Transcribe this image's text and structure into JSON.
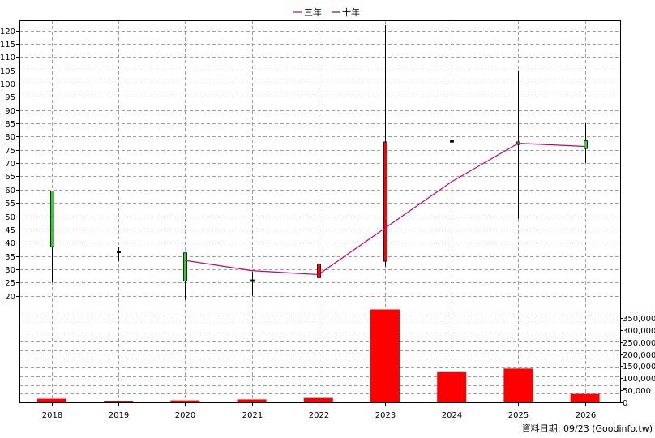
{
  "legend": [
    {
      "label": "三年",
      "color": "#cc0066"
    },
    {
      "label": "十年",
      "color": "#6600cc"
    }
  ],
  "footer_text": "資料日期: 09/23  (Goodinfo.tw)",
  "chart_data": {
    "type": "candlestick",
    "years": [
      "2018",
      "2019",
      "2020",
      "2021",
      "2022",
      "2023",
      "2024",
      "2025",
      "2026"
    ],
    "price_axis": {
      "min": 15,
      "max": 122,
      "ticks": [
        20,
        25,
        30,
        35,
        40,
        45,
        50,
        55,
        60,
        65,
        70,
        75,
        80,
        85,
        90,
        95,
        100,
        105,
        110,
        115,
        120
      ]
    },
    "volume_axis": {
      "min": 0,
      "max": 390000,
      "ticks": [
        0,
        50000,
        100000,
        150000,
        200000,
        250000,
        300000,
        350000
      ],
      "tick_labels": [
        "0",
        "50,000",
        "100,000",
        "150,000",
        "200,000",
        "250,000",
        "300,000",
        "350,000"
      ]
    },
    "candles": [
      {
        "year": "2018",
        "open": 59.5,
        "close": 38.5,
        "high": 59.5,
        "low": 25.0,
        "color": "green"
      },
      {
        "year": "2019",
        "open": 36.8,
        "close": 36.8,
        "high": 38.5,
        "low": 33.0,
        "color": "black"
      },
      {
        "year": "2020",
        "open": 36.2,
        "close": 25.5,
        "high": 36.2,
        "low": 18.5,
        "color": "green"
      },
      {
        "year": "2021",
        "open": 26.0,
        "close": 26.0,
        "high": 29.0,
        "low": 20.0,
        "color": "black"
      },
      {
        "year": "2022",
        "open": 26.8,
        "close": 32.0,
        "high": 33.0,
        "low": 20.5,
        "color": "red"
      },
      {
        "year": "2023",
        "open": 33.0,
        "close": 78.0,
        "high": 122.0,
        "low": 31.0,
        "color": "red"
      },
      {
        "year": "2024",
        "open": 78.5,
        "close": 78.5,
        "high": 100.0,
        "low": 64.5,
        "color": "black"
      },
      {
        "year": "2025",
        "open": 78.0,
        "close": 77.0,
        "high": 105.0,
        "low": 49.0,
        "color": "green"
      },
      {
        "year": "2026",
        "open": 78.5,
        "close": 75.5,
        "high": 85.0,
        "low": 70.0,
        "color": "green"
      }
    ],
    "three_year_ma": [
      {
        "year": "2020",
        "value": 33.3
      },
      {
        "year": "2021",
        "value": 29.5
      },
      {
        "year": "2022",
        "value": 28.0
      },
      {
        "year": "2023",
        "value": 45.5
      },
      {
        "year": "2024",
        "value": 63.0
      },
      {
        "year": "2025",
        "value": 77.5
      },
      {
        "year": "2026",
        "value": 76.3
      }
    ],
    "volume": [
      {
        "year": "2018",
        "value": 15000
      },
      {
        "year": "2019",
        "value": 4000
      },
      {
        "year": "2020",
        "value": 8000
      },
      {
        "year": "2021",
        "value": 12000
      },
      {
        "year": "2022",
        "value": 18000
      },
      {
        "year": "2023",
        "value": 385000
      },
      {
        "year": "2024",
        "value": 125000
      },
      {
        "year": "2025",
        "value": 140000
      },
      {
        "year": "2026",
        "value": 35000
      }
    ]
  }
}
